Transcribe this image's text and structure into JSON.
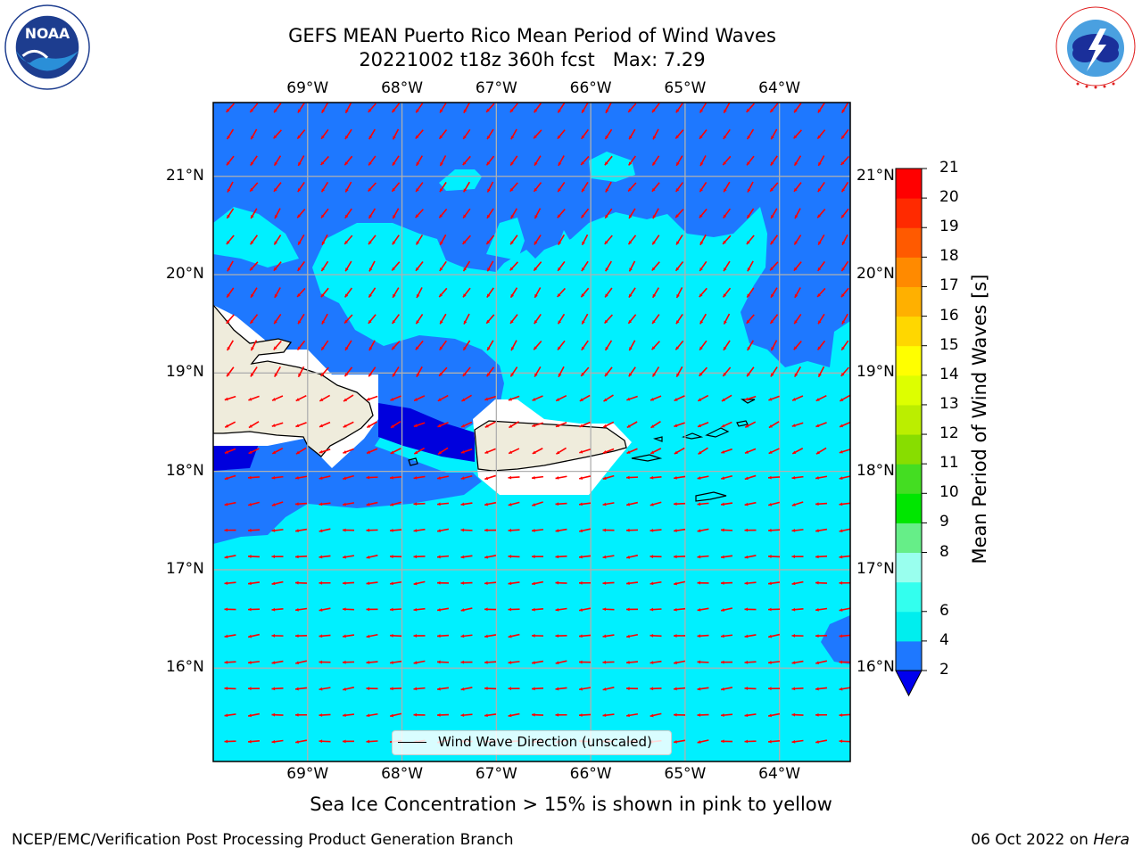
{
  "title": {
    "line1": "GEFS MEAN Puerto Rico Mean Period of Wind Waves",
    "line2": "20221002 t18z 360h fcst   Max: 7.29"
  },
  "axes": {
    "longitude_labels": [
      "69°W",
      "68°W",
      "67°W",
      "66°W",
      "65°W",
      "64°W"
    ],
    "latitude_labels": [
      "21°N",
      "20°N",
      "19°N",
      "18°N",
      "17°N",
      "16°N"
    ],
    "lon_values": [
      -69,
      -68,
      -67,
      -66,
      -65,
      -64
    ],
    "lat_values": [
      21,
      20,
      19,
      18,
      17,
      16
    ],
    "lon_range": [
      -70,
      -63.25
    ],
    "lat_range": [
      15.05,
      21.75
    ],
    "grid": true
  },
  "colorbar": {
    "label": "Mean Period of Wind Waves [s]",
    "tick_labels": [
      "2",
      "4",
      "6",
      "8",
      "9",
      "10",
      "11",
      "12",
      "13",
      "14",
      "15",
      "16",
      "17",
      "18",
      "19",
      "20",
      "21"
    ],
    "levels": [
      2,
      4,
      6,
      7,
      8,
      9,
      10,
      11,
      12,
      13,
      14,
      15,
      16,
      17,
      18,
      19,
      20,
      21
    ],
    "colors": [
      "#1e78ff",
      "#00eeee",
      "#33ffee",
      "#99ffee",
      "#66ee88",
      "#00e600",
      "#44dd22",
      "#88dd00",
      "#bbee00",
      "#ddff00",
      "#ffff00",
      "#ffd700",
      "#ffb000",
      "#ff8a00",
      "#ff5a00",
      "#ff2a00",
      "#ff0000"
    ],
    "extend_min_color": "#0000ee"
  },
  "legend": {
    "label": "Wind Wave Direction (unscaled)"
  },
  "footnote": "Sea Ice Concentration > 15% is shown in pink to yellow",
  "credit": "NCEP/EMC/Verification Post Processing Product Generation Branch",
  "run_date": {
    "date": "06 Oct 2022 on",
    "machine": "Hera"
  },
  "logos": {
    "left": "noaa-logo",
    "right": "nws-logo"
  },
  "style": {
    "land": "#efecdc",
    "arrow": "#ff0000",
    "deep_blue": "#0000dd",
    "blue": "#1e78ff",
    "cyan": "#00f0ff"
  }
}
